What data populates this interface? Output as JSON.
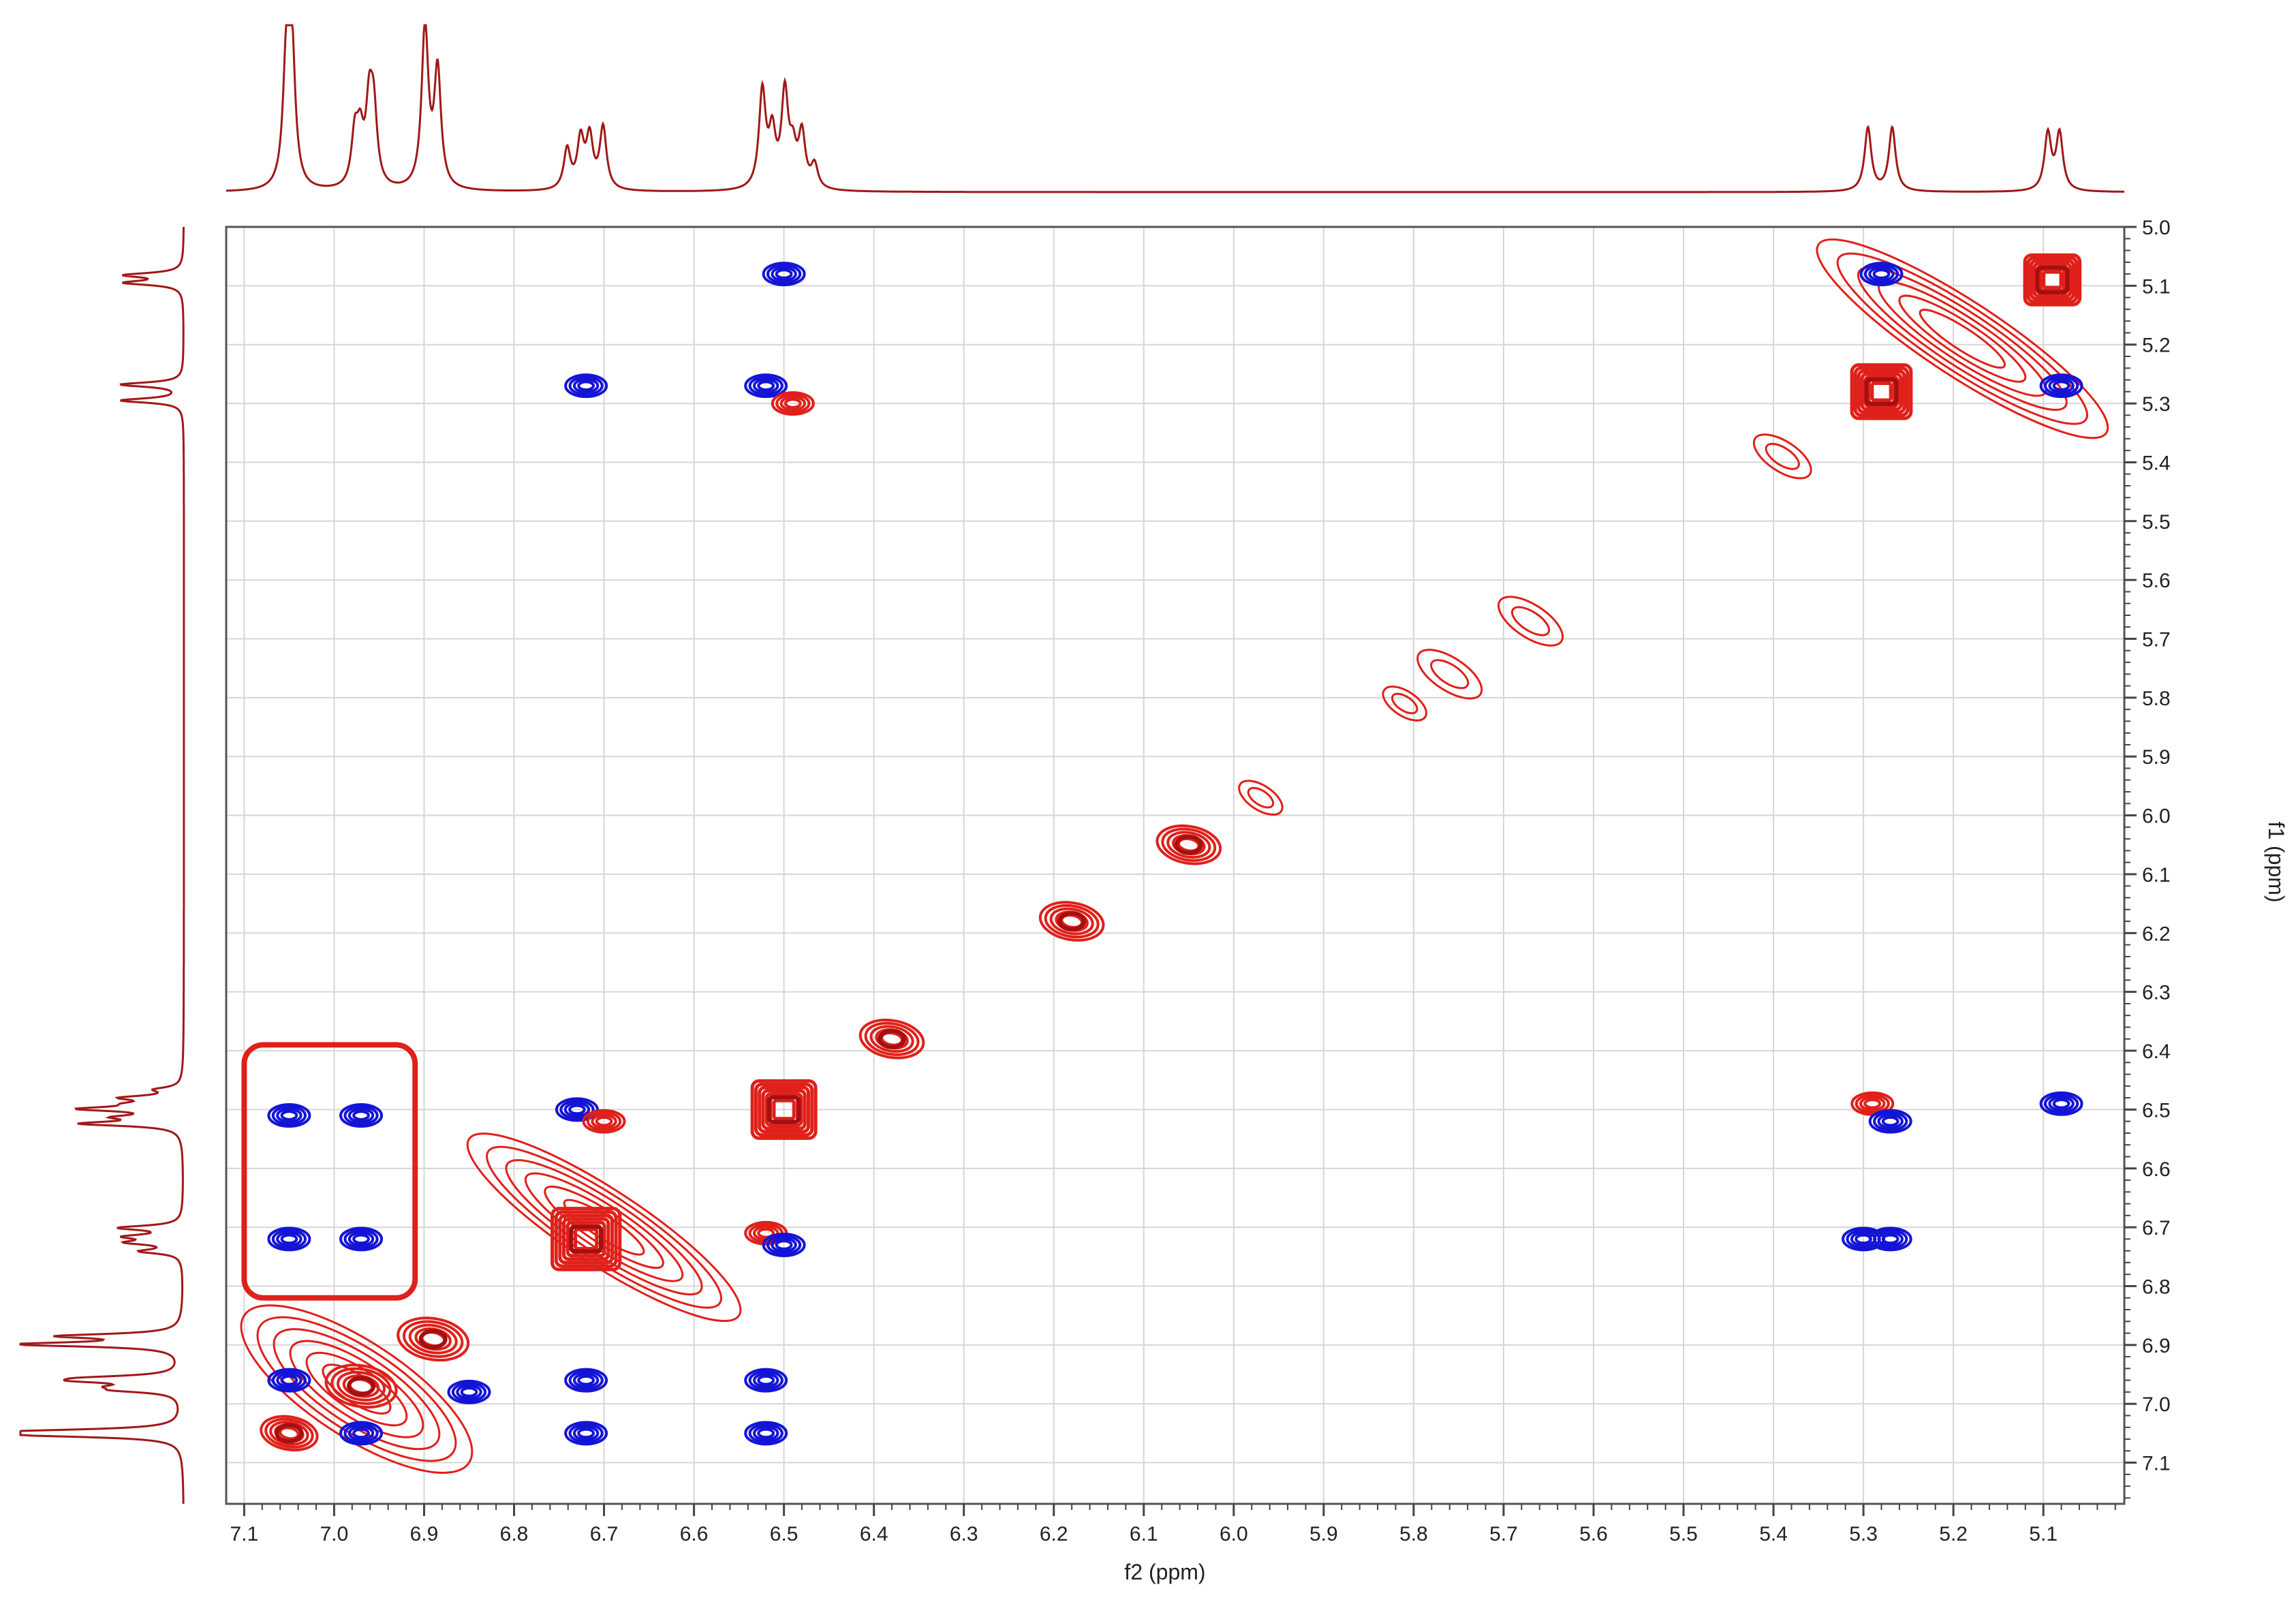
{
  "chart_data": {
    "type": "2D NMR contour plot (COSY)",
    "x_axis": {
      "label": "f2 (ppm)",
      "range": [
        7.12,
        5.01
      ],
      "reversed": true,
      "ticks": [
        7.1,
        7.0,
        6.9,
        6.8,
        6.7,
        6.6,
        6.5,
        6.4,
        6.3,
        6.2,
        6.1,
        6.0,
        5.9,
        5.8,
        5.7,
        5.6,
        5.5,
        5.4,
        5.3,
        5.2,
        5.1
      ],
      "tick_labels": [
        "7.1",
        "7.0",
        "6.9",
        "6.8",
        "6.7",
        "6.6",
        "6.5",
        "6.4",
        "6.3",
        "6.2",
        "6.1",
        "6.0",
        "5.9",
        "5.8",
        "5.7",
        "5.6",
        "5.5",
        "5.4",
        "5.3",
        "5.2",
        "5.1"
      ]
    },
    "y_axis": {
      "label": "f1 (ppm)",
      "range": [
        5.0,
        7.17
      ],
      "position": "right",
      "ticks": [
        5.0,
        5.1,
        5.2,
        5.3,
        5.4,
        5.5,
        5.6,
        5.7,
        5.8,
        5.9,
        6.0,
        6.1,
        6.2,
        6.3,
        6.4,
        6.5,
        6.6,
        6.7,
        6.8,
        6.9,
        7.0,
        7.1
      ],
      "tick_labels": [
        "5.0",
        "5.1",
        "5.2",
        "5.3",
        "5.4",
        "5.5",
        "5.6",
        "5.7",
        "5.8",
        "5.9",
        "6.0",
        "6.1",
        "6.2",
        "6.3",
        "6.4",
        "6.5",
        "6.6",
        "6.7",
        "6.8",
        "6.9",
        "7.0",
        "7.1"
      ]
    },
    "grid": true,
    "colors": {
      "positive_contour": "#e0201a",
      "positive_core": "#a31010",
      "negative_contour": "#1414d6",
      "projection": "#a01818",
      "highlight_box": "#e0201a",
      "grid": "#d6d6d6"
    },
    "projection_peaks": [
      {
        "ppm": 7.053,
        "h": 0.74
      },
      {
        "ppm": 7.047,
        "h": 0.8
      },
      {
        "ppm": 6.977,
        "h": 0.3
      },
      {
        "ppm": 6.971,
        "h": 0.27
      },
      {
        "ppm": 6.961,
        "h": 0.45
      },
      {
        "ppm": 6.956,
        "h": 0.42
      },
      {
        "ppm": 6.899,
        "h": 0.97
      },
      {
        "ppm": 6.885,
        "h": 0.7
      },
      {
        "ppm": 6.741,
        "h": 0.24
      },
      {
        "ppm": 6.726,
        "h": 0.29
      },
      {
        "ppm": 6.716,
        "h": 0.3
      },
      {
        "ppm": 6.701,
        "h": 0.37
      },
      {
        "ppm": 6.524,
        "h": 0.58
      },
      {
        "ppm": 6.513,
        "h": 0.31
      },
      {
        "ppm": 6.499,
        "h": 0.56
      },
      {
        "ppm": 6.49,
        "h": 0.2
      },
      {
        "ppm": 6.48,
        "h": 0.32
      },
      {
        "ppm": 6.466,
        "h": 0.14
      },
      {
        "ppm": 5.295,
        "h": 0.38
      },
      {
        "ppm": 5.268,
        "h": 0.38
      },
      {
        "ppm": 5.095,
        "h": 0.34
      },
      {
        "ppm": 5.082,
        "h": 0.34
      }
    ],
    "diagonal_peaks": [
      {
        "ppm": 7.05,
        "size": 0.8
      },
      {
        "ppm": 6.97,
        "size": 1.0
      },
      {
        "ppm": 6.89,
        "size": 1.0
      },
      {
        "ppm": 6.72,
        "size": 1.6
      },
      {
        "ppm": 6.5,
        "size": 1.5
      },
      {
        "ppm": 6.38,
        "size": 0.9
      },
      {
        "ppm": 6.18,
        "size": 0.9
      },
      {
        "ppm": 6.05,
        "size": 0.9
      },
      {
        "ppm": 5.97,
        "size": 0.4
      },
      {
        "ppm": 5.81,
        "size": 0.4
      },
      {
        "ppm": 5.76,
        "size": 0.7
      },
      {
        "ppm": 5.67,
        "size": 0.7
      },
      {
        "ppm": 5.39,
        "size": 0.6
      },
      {
        "ppm": 5.28,
        "size": 1.4
      },
      {
        "ppm": 5.09,
        "size": 1.3
      }
    ],
    "cross_peaks": [
      {
        "f2": 6.5,
        "f1": 5.08,
        "sign": "negative"
      },
      {
        "f2": 6.72,
        "f1": 5.27,
        "sign": "negative"
      },
      {
        "f2": 6.52,
        "f1": 5.27,
        "sign": "negative"
      },
      {
        "f2": 6.49,
        "f1": 5.3,
        "sign": "positive"
      },
      {
        "f2": 5.28,
        "f1": 5.08,
        "sign": "negative"
      },
      {
        "f2": 5.08,
        "f1": 5.27,
        "sign": "negative"
      },
      {
        "f2": 7.05,
        "f1": 6.51,
        "sign": "negative"
      },
      {
        "f2": 6.97,
        "f1": 6.51,
        "sign": "negative"
      },
      {
        "f2": 7.05,
        "f1": 6.72,
        "sign": "negative"
      },
      {
        "f2": 6.97,
        "f1": 6.72,
        "sign": "negative"
      },
      {
        "f2": 6.73,
        "f1": 6.5,
        "sign": "negative"
      },
      {
        "f2": 6.7,
        "f1": 6.52,
        "sign": "positive"
      },
      {
        "f2": 6.52,
        "f1": 6.71,
        "sign": "positive"
      },
      {
        "f2": 6.5,
        "f1": 6.73,
        "sign": "negative"
      },
      {
        "f2": 6.72,
        "f1": 6.96,
        "sign": "negative"
      },
      {
        "f2": 6.72,
        "f1": 7.05,
        "sign": "negative"
      },
      {
        "f2": 6.52,
        "f1": 6.96,
        "sign": "negative"
      },
      {
        "f2": 6.52,
        "f1": 7.05,
        "sign": "negative"
      },
      {
        "f2": 5.29,
        "f1": 6.49,
        "sign": "positive"
      },
      {
        "f2": 5.27,
        "f1": 6.52,
        "sign": "negative"
      },
      {
        "f2": 5.08,
        "f1": 6.49,
        "sign": "negative"
      },
      {
        "f2": 5.3,
        "f1": 6.72,
        "sign": "negative"
      },
      {
        "f2": 5.27,
        "f1": 6.72,
        "sign": "negative"
      },
      {
        "f2": 7.05,
        "f1": 6.96,
        "sign": "negative"
      },
      {
        "f2": 6.97,
        "f1": 7.05,
        "sign": "negative"
      },
      {
        "f2": 6.85,
        "f1": 6.98,
        "sign": "negative"
      }
    ],
    "highlight_box": {
      "f2": [
        7.1,
        6.91
      ],
      "f1": [
        6.39,
        6.82
      ]
    }
  }
}
